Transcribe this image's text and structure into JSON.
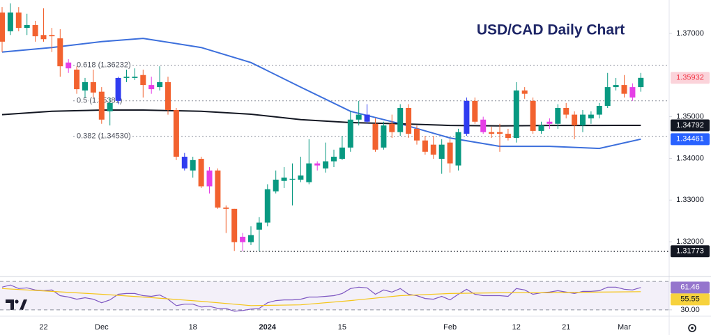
{
  "chart_data": [
    {
      "type": "candlestick",
      "title": "USD/CAD Daily Chart",
      "categories": [
        null,
        null,
        null,
        null,
        null,
        "22",
        null,
        null,
        null,
        null,
        null,
        null,
        "Dec",
        null,
        null,
        null,
        null,
        null,
        null,
        null,
        null,
        null,
        null,
        "18",
        null,
        null,
        null,
        null,
        null,
        null,
        null,
        null,
        "2024",
        null,
        null,
        null,
        null,
        null,
        null,
        null,
        null,
        "15",
        null,
        null,
        null,
        null,
        null,
        null,
        null,
        null,
        null,
        null,
        null,
        null,
        "Feb",
        null,
        null,
        null,
        null,
        null,
        null,
        null,
        "12",
        null,
        null,
        null,
        null,
        null,
        "21",
        null,
        null,
        null,
        null,
        null,
        null,
        "Mar",
        null,
        null
      ],
      "open": [
        1.375,
        1.3705,
        1.375,
        1.3713,
        1.372,
        1.3696,
        1.3696,
        1.3688,
        1.363,
        1.3613,
        1.3563,
        1.3583,
        1.356,
        1.3513,
        1.3538,
        1.3593,
        1.3593,
        1.36,
        1.3576,
        1.3571,
        1.3583,
        1.3516,
        1.3376,
        1.3371,
        1.3399,
        1.3371,
        1.3371,
        1.3282,
        1.3279,
        1.3212,
        1.3199,
        1.3229,
        1.3246,
        1.3321,
        1.3346,
        1.3349,
        1.3349,
        1.3343,
        1.3388,
        1.3376,
        1.3393,
        1.3399,
        1.3426,
        1.3493,
        1.3488,
        1.3483,
        1.3426,
        1.3483,
        1.3463,
        1.3521,
        1.3471,
        1.3443,
        1.3433,
        1.3399,
        1.3438,
        1.3383,
        1.3459,
        1.3538,
        1.3493,
        1.3463,
        1.3463,
        1.3459,
        1.3449,
        1.3563,
        1.3538,
        1.3466,
        1.3483,
        1.3483,
        1.3521,
        1.3505,
        1.3479,
        1.3496,
        1.3505,
        1.3526,
        1.3571,
        1.3576,
        1.3571,
        1.3571
      ],
      "high": [
        1.3763,
        1.3772,
        1.3763,
        1.3747,
        1.373,
        1.376,
        1.3713,
        1.371,
        1.3638,
        1.3621,
        1.3593,
        1.3613,
        1.3571,
        1.3546,
        1.3596,
        1.3613,
        1.3616,
        1.3613,
        1.3596,
        1.3621,
        1.3596,
        1.3521,
        1.3413,
        1.3404,
        1.3404,
        1.3379,
        1.3376,
        1.3287,
        1.3279,
        1.3221,
        1.3237,
        1.3259,
        1.3338,
        1.3371,
        1.3379,
        1.3388,
        1.3404,
        1.3446,
        1.3393,
        1.3438,
        1.3421,
        1.3454,
        1.3513,
        1.3538,
        1.353,
        1.3496,
        1.3488,
        1.3505,
        1.353,
        1.353,
        1.3479,
        1.3454,
        1.3454,
        1.3446,
        1.3446,
        1.3471,
        1.3546,
        1.3546,
        1.35,
        1.3476,
        1.3483,
        1.3471,
        1.3583,
        1.3571,
        1.3546,
        1.3488,
        1.3496,
        1.353,
        1.3533,
        1.3513,
        1.3516,
        1.3513,
        1.3533,
        1.3605,
        1.3593,
        1.36,
        1.358,
        1.3605
      ],
      "low": [
        1.3655,
        1.3696,
        1.3705,
        1.3696,
        1.368,
        1.368,
        1.3655,
        1.3596,
        1.3605,
        1.3555,
        1.3546,
        1.3546,
        1.3483,
        1.3479,
        1.353,
        1.3583,
        1.3588,
        1.3546,
        1.3555,
        1.3563,
        1.3505,
        1.3396,
        1.3371,
        1.3354,
        1.3329,
        1.3316,
        1.3279,
        1.3221,
        1.3178,
        1.31773,
        1.3192,
        1.3178,
        1.3237,
        1.3316,
        1.3329,
        1.3287,
        1.3343,
        1.3338,
        1.3371,
        1.3366,
        1.3379,
        1.3396,
        1.3416,
        1.3479,
        1.3483,
        1.3416,
        1.3421,
        1.3449,
        1.3454,
        1.3449,
        1.3433,
        1.3409,
        1.3399,
        1.3363,
        1.3366,
        1.3371,
        1.3454,
        1.3483,
        1.3459,
        1.3449,
        1.3416,
        1.3443,
        1.3438,
        1.3543,
        1.3459,
        1.3459,
        1.3471,
        1.3471,
        1.3496,
        1.3446,
        1.3463,
        1.3483,
        1.3496,
        1.3521,
        1.3563,
        1.3546,
        1.3538,
        1.356
      ],
      "close": [
        1.368,
        1.375,
        1.3713,
        1.372,
        1.3693,
        1.3686,
        1.3693,
        1.3621,
        1.3616,
        1.3566,
        1.3583,
        1.3558,
        1.3493,
        1.3533,
        1.3593,
        1.3596,
        1.3596,
        1.3576,
        1.3566,
        1.3583,
        1.3516,
        1.3404,
        1.3404,
        1.3396,
        1.3333,
        1.3333,
        1.3282,
        1.3279,
        1.3199,
        1.3199,
        1.3216,
        1.3246,
        1.3326,
        1.3349,
        1.3354,
        1.3351,
        1.3359,
        1.3388,
        1.3383,
        1.3393,
        1.3404,
        1.3426,
        1.3493,
        1.3505,
        1.3505,
        1.3421,
        1.3479,
        1.3463,
        1.3521,
        1.3459,
        1.3443,
        1.3416,
        1.3409,
        1.3433,
        1.3388,
        1.3463,
        1.3538,
        1.3488,
        1.3463,
        1.3459,
        1.3459,
        1.3449,
        1.3563,
        1.3555,
        1.3466,
        1.3479,
        1.3488,
        1.3521,
        1.3505,
        1.3479,
        1.3505,
        1.3505,
        1.3526,
        1.3571,
        1.3576,
        1.3555,
        1.3546,
        1.35932
      ],
      "colors": [
        "#f2622f",
        "#089981",
        "#f2622f",
        "#089981",
        "#f2622f",
        "#f2622f",
        "#f2622f",
        "#f2622f",
        "#e53ee6",
        "#f2622f",
        "#089981",
        "#f2622f",
        "#f2622f",
        "#089981",
        "#2f3cf0",
        "#089981",
        "#089981",
        "#f2622f",
        "#e53ee6",
        "#089981",
        "#f2622f",
        "#f2622f",
        "#2f3cf0",
        "#089981",
        "#f2622f",
        "#e53ee6",
        "#f2622f",
        "#f2622f",
        "#f2622f",
        "#e53ee6",
        "#089981",
        "#089981",
        "#089981",
        "#089981",
        "#089981",
        "#089981",
        "#089981",
        "#089981",
        "#e53ee6",
        "#089981",
        "#089981",
        "#089981",
        "#089981",
        "#089981",
        "#2f3cf0",
        "#f2622f",
        "#089981",
        "#f2622f",
        "#089981",
        "#f2622f",
        "#f2622f",
        "#f2622f",
        "#f2622f",
        "#089981",
        "#f2622f",
        "#089981",
        "#2f3cf0",
        "#f2622f",
        "#e53ee6",
        "#f2622f",
        "#f2622f",
        "#f2622f",
        "#089981",
        "#f2622f",
        "#f2622f",
        "#089981",
        "#e53ee6",
        "#089981",
        "#f2622f",
        "#f2622f",
        "#089981",
        "#089981",
        "#089981",
        "#089981",
        "#089981",
        "#f2622f",
        "#e53ee6",
        "#089981"
      ],
      "ylim": [
        1.312,
        1.378
      ],
      "yticks": [
        {
          "value": 1.32,
          "label": "1.32000"
        },
        {
          "value": 1.33,
          "label": "1.33000"
        },
        {
          "value": 1.34,
          "label": "1.34000"
        },
        {
          "value": 1.35,
          "label": "1.35000"
        },
        {
          "value": 1.37,
          "label": "1.37000"
        }
      ],
      "grid": false,
      "lines": [
        {
          "color": "#3c6fdc",
          "x": [
            0,
            6,
            12,
            17,
            24,
            30,
            36,
            42,
            48,
            54,
            60,
            66,
            72,
            77
          ],
          "values": [
            1.3655,
            1.3666,
            1.368,
            1.3688,
            1.3666,
            1.363,
            1.3571,
            1.3513,
            1.3483,
            1.3449,
            1.3429,
            1.3429,
            1.3424,
            1.34461
          ]
        },
        {
          "color": "#131722",
          "x": [
            0,
            6,
            12,
            17,
            24,
            30,
            36,
            42,
            48,
            54,
            60,
            66,
            72,
            77
          ],
          "values": [
            1.3505,
            1.3513,
            1.3516,
            1.3516,
            1.3513,
            1.3506,
            1.3493,
            1.3486,
            1.3483,
            1.3479,
            1.3478,
            1.3479,
            1.3479,
            1.34792
          ]
        }
      ],
      "levels": [
        {
          "value": 1.36232,
          "label": "0.618 (1.36232)"
        },
        {
          "value": 1.35381,
          "label": "0.5 (1.35381)"
        },
        {
          "value": 1.3453,
          "label": "0.382 (1.34530)"
        }
      ],
      "support": 1.31773,
      "price_labels": [
        {
          "value": 1.35932,
          "color": "#f23645",
          "background": "#fbd3da"
        },
        {
          "value": 1.34792,
          "color": "#ffffff",
          "background": "#131722"
        },
        {
          "value": 1.34461,
          "color": "#ffffff",
          "background": "#2962ff"
        },
        {
          "value": 1.31773,
          "color": "#ffffff",
          "background": "#131722"
        }
      ]
    },
    {
      "type": "line",
      "ylim": [
        23,
        76
      ],
      "yticks": [
        {
          "value": 30,
          "label": "30.00"
        }
      ],
      "bands": [
        70,
        30
      ],
      "series": [
        {
          "color": "#7e57c2",
          "values": [
            62,
            65,
            60,
            61,
            58,
            57,
            58,
            50,
            48,
            45,
            47,
            45,
            40,
            44,
            52,
            53,
            53,
            50,
            49,
            51,
            45,
            36,
            38,
            38,
            34,
            35,
            32,
            32,
            28,
            29,
            31,
            32,
            40,
            43,
            44,
            44,
            45,
            48,
            48,
            49,
            50,
            53,
            60,
            62,
            61,
            52,
            58,
            55,
            60,
            52,
            50,
            46,
            45,
            49,
            44,
            52,
            59,
            52,
            50,
            50,
            50,
            49,
            60,
            58,
            52,
            54,
            55,
            57,
            55,
            53,
            56,
            56,
            57,
            62,
            62,
            59,
            58,
            61.46
          ]
        },
        {
          "color": "#f5c518",
          "x": [
            0,
            6,
            12,
            17,
            24,
            30,
            36,
            42,
            48,
            54,
            60,
            66,
            72,
            77
          ],
          "values": [
            60,
            56,
            52,
            48,
            42,
            36,
            37,
            43,
            50,
            53,
            54,
            54,
            55,
            55.55
          ]
        }
      ],
      "value_labels": [
        {
          "value": 61.46,
          "color": "#ffffff",
          "background": "#9575cd"
        },
        {
          "value": 55.55,
          "color": "#131722",
          "background": "#f7d23c"
        }
      ]
    }
  ]
}
